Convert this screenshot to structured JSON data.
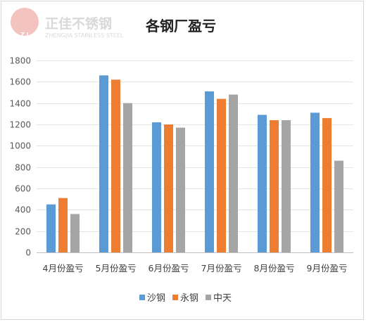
{
  "watermark": {
    "initials": "Z J",
    "name_cn": "正佳不锈钢",
    "name_en": "ZHENGJIA STAINLESS STEEL"
  },
  "colors": {
    "沙钢": "#5b9bd5",
    "永钢": "#ed7d31",
    "中天": "#a5a5a5"
  },
  "chart_data": {
    "type": "bar",
    "title": "各钢厂盈亏",
    "xlabel": "",
    "ylabel": "",
    "ylim": [
      0,
      1800
    ],
    "yticks": [
      0,
      200,
      400,
      600,
      800,
      1000,
      1200,
      1400,
      1600,
      1800
    ],
    "grid": true,
    "legend": "bottom",
    "categories": [
      "4月份盈亏",
      "5月份盈亏",
      "6月份盈亏",
      "7月份盈亏",
      "8月份盈亏",
      "9月份盈亏"
    ],
    "series": [
      {
        "name": "沙钢",
        "values": [
          450,
          1660,
          1220,
          1510,
          1290,
          1310
        ]
      },
      {
        "name": "永钢",
        "values": [
          510,
          1620,
          1200,
          1440,
          1240,
          1260
        ]
      },
      {
        "name": "中天",
        "values": [
          360,
          1400,
          1170,
          1480,
          1240,
          860
        ]
      }
    ]
  }
}
